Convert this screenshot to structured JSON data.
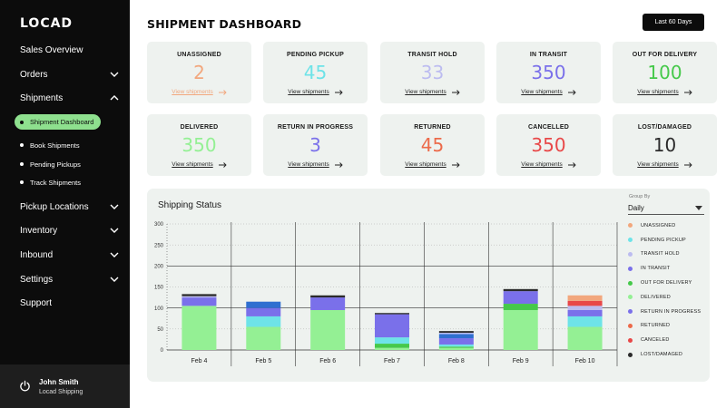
{
  "app": {
    "logo": "LOCAD",
    "page_title": "SHIPMENT DASHBOARD",
    "date_range": "Last 60 Days"
  },
  "sidebar": {
    "items": [
      {
        "label": "Sales Overview",
        "icon": "none"
      },
      {
        "label": "Orders",
        "icon": "chevron-down-icon"
      },
      {
        "label": "Shipments",
        "icon": "chevron-up-icon"
      },
      {
        "label": "Pickup Locations",
        "icon": "chevron-down-icon"
      },
      {
        "label": "Inventory",
        "icon": "chevron-down-icon"
      },
      {
        "label": "Inbound",
        "icon": "chevron-down-icon"
      },
      {
        "label": "Settings",
        "icon": "chevron-down-icon"
      },
      {
        "label": "Support",
        "icon": "none"
      }
    ],
    "shipments_sub": [
      {
        "label": "Shipment Dashboard",
        "active": true
      },
      {
        "label": "Book Shipments",
        "active": false
      },
      {
        "label": "Pending Pickups",
        "active": false
      },
      {
        "label": "Track Shipments",
        "active": false
      }
    ],
    "user": {
      "name": "John Smith",
      "org": "Locad Shipping"
    }
  },
  "cards": [
    {
      "label": "UNASSIGNED",
      "value": "2",
      "color": "#f2a77d",
      "link": "View shipments",
      "link_color": "#f2a77d"
    },
    {
      "label": "PENDING PICKUP",
      "value": "45",
      "color": "#6ee3e8",
      "link": "View shipments",
      "link_color": "#222222"
    },
    {
      "label": "TRANSIT HOLD",
      "value": "33",
      "color": "#bcbcf0",
      "link": "View shipments",
      "link_color": "#222222"
    },
    {
      "label": "IN TRANSIT",
      "value": "350",
      "color": "#7a70ea",
      "link": "View shipments",
      "link_color": "#222222"
    },
    {
      "label": "OUT FOR DELIVERY",
      "value": "100",
      "color": "#45c94a",
      "link": "View shipments",
      "link_color": "#222222"
    },
    {
      "label": "DELIVERED",
      "value": "350",
      "color": "#94f094",
      "link": "View shipments",
      "link_color": "#222222"
    },
    {
      "label": "RETURN IN PROGRESS",
      "value": "3",
      "color": "#7a70ea",
      "link": "View shipments",
      "link_color": "#222222"
    },
    {
      "label": "RETURNED",
      "value": "45",
      "color": "#ec6a4a",
      "link": "View shipments",
      "link_color": "#222222"
    },
    {
      "label": "CANCELLED",
      "value": "350",
      "color": "#e84848",
      "link": "View shipments",
      "link_color": "#222222"
    },
    {
      "label": "LOST/DAMAGED",
      "value": "10",
      "color": "#2b2b2b",
      "link": "View shipments",
      "link_color": "#222222"
    }
  ],
  "chart_panel": {
    "title": "Shipping Status",
    "group_by_label": "Group By",
    "group_by_value": "Daily"
  },
  "chart_data": {
    "type": "bar",
    "stacked": true,
    "title": "Shipping Status",
    "categories": [
      "Feb 4",
      "Feb 5",
      "Feb 6",
      "Feb 7",
      "Feb 8",
      "Feb 9",
      "Feb 10"
    ],
    "ylim": [
      0,
      300
    ],
    "yticks": [
      0,
      50,
      100,
      150,
      200,
      250,
      300
    ],
    "legend_position": "right",
    "series": [
      {
        "name": "DELIVERED",
        "color": "#94f094",
        "values": [
          105,
          55,
          95,
          5,
          5,
          95,
          55
        ]
      },
      {
        "name": "OUT FOR DELIVERY",
        "color": "#45c94a",
        "values": [
          0,
          0,
          0,
          10,
          3,
          15,
          0
        ]
      },
      {
        "name": "PENDING PICKUP",
        "color": "#6ee3e8",
        "values": [
          0,
          25,
          0,
          15,
          5,
          0,
          25
        ]
      },
      {
        "name": "IN TRANSIT",
        "color": "#7a70ea",
        "values": [
          20,
          20,
          30,
          55,
          15,
          30,
          15
        ]
      },
      {
        "name": "RETURN IN PROGRESS",
        "color": "#2f6fd0",
        "values": [
          0,
          15,
          0,
          0,
          10,
          0,
          0
        ]
      },
      {
        "name": "TRANSIT HOLD",
        "color": "#bcbcf0",
        "values": [
          3,
          0,
          0,
          0,
          3,
          0,
          10
        ]
      },
      {
        "name": "CANCELED",
        "color": "#e84848",
        "values": [
          0,
          0,
          0,
          0,
          0,
          0,
          12
        ]
      },
      {
        "name": "UNASSIGNED",
        "color": "#f2a77d",
        "values": [
          0,
          0,
          0,
          0,
          0,
          0,
          13
        ]
      },
      {
        "name": "RETURNED",
        "color": "#ec6a4a",
        "values": [
          0,
          0,
          0,
          0,
          0,
          0,
          0
        ]
      },
      {
        "name": "LOST/DAMAGED",
        "color": "#2b2b2b",
        "values": [
          5,
          0,
          5,
          3,
          4,
          5,
          0
        ]
      }
    ]
  },
  "legend": [
    {
      "label": "UNASSIGNED",
      "color": "#f2a77d"
    },
    {
      "label": "PENDING PICKUP",
      "color": "#6ee3e8"
    },
    {
      "label": "TRANSIT HOLD",
      "color": "#bcbcf0"
    },
    {
      "label": "IN TRANSIT",
      "color": "#7a70ea"
    },
    {
      "label": "OUT FOR DELIVERY",
      "color": "#45c94a"
    },
    {
      "label": "DELIVERED",
      "color": "#94f094"
    },
    {
      "label": "RETURN IN PROGRESS",
      "color": "#7a70ea"
    },
    {
      "label": "RETURNED",
      "color": "#ec6a4a"
    },
    {
      "label": "CANCELED",
      "color": "#e84848"
    },
    {
      "label": "LOST/DAMAGED",
      "color": "#2b2b2b"
    }
  ]
}
